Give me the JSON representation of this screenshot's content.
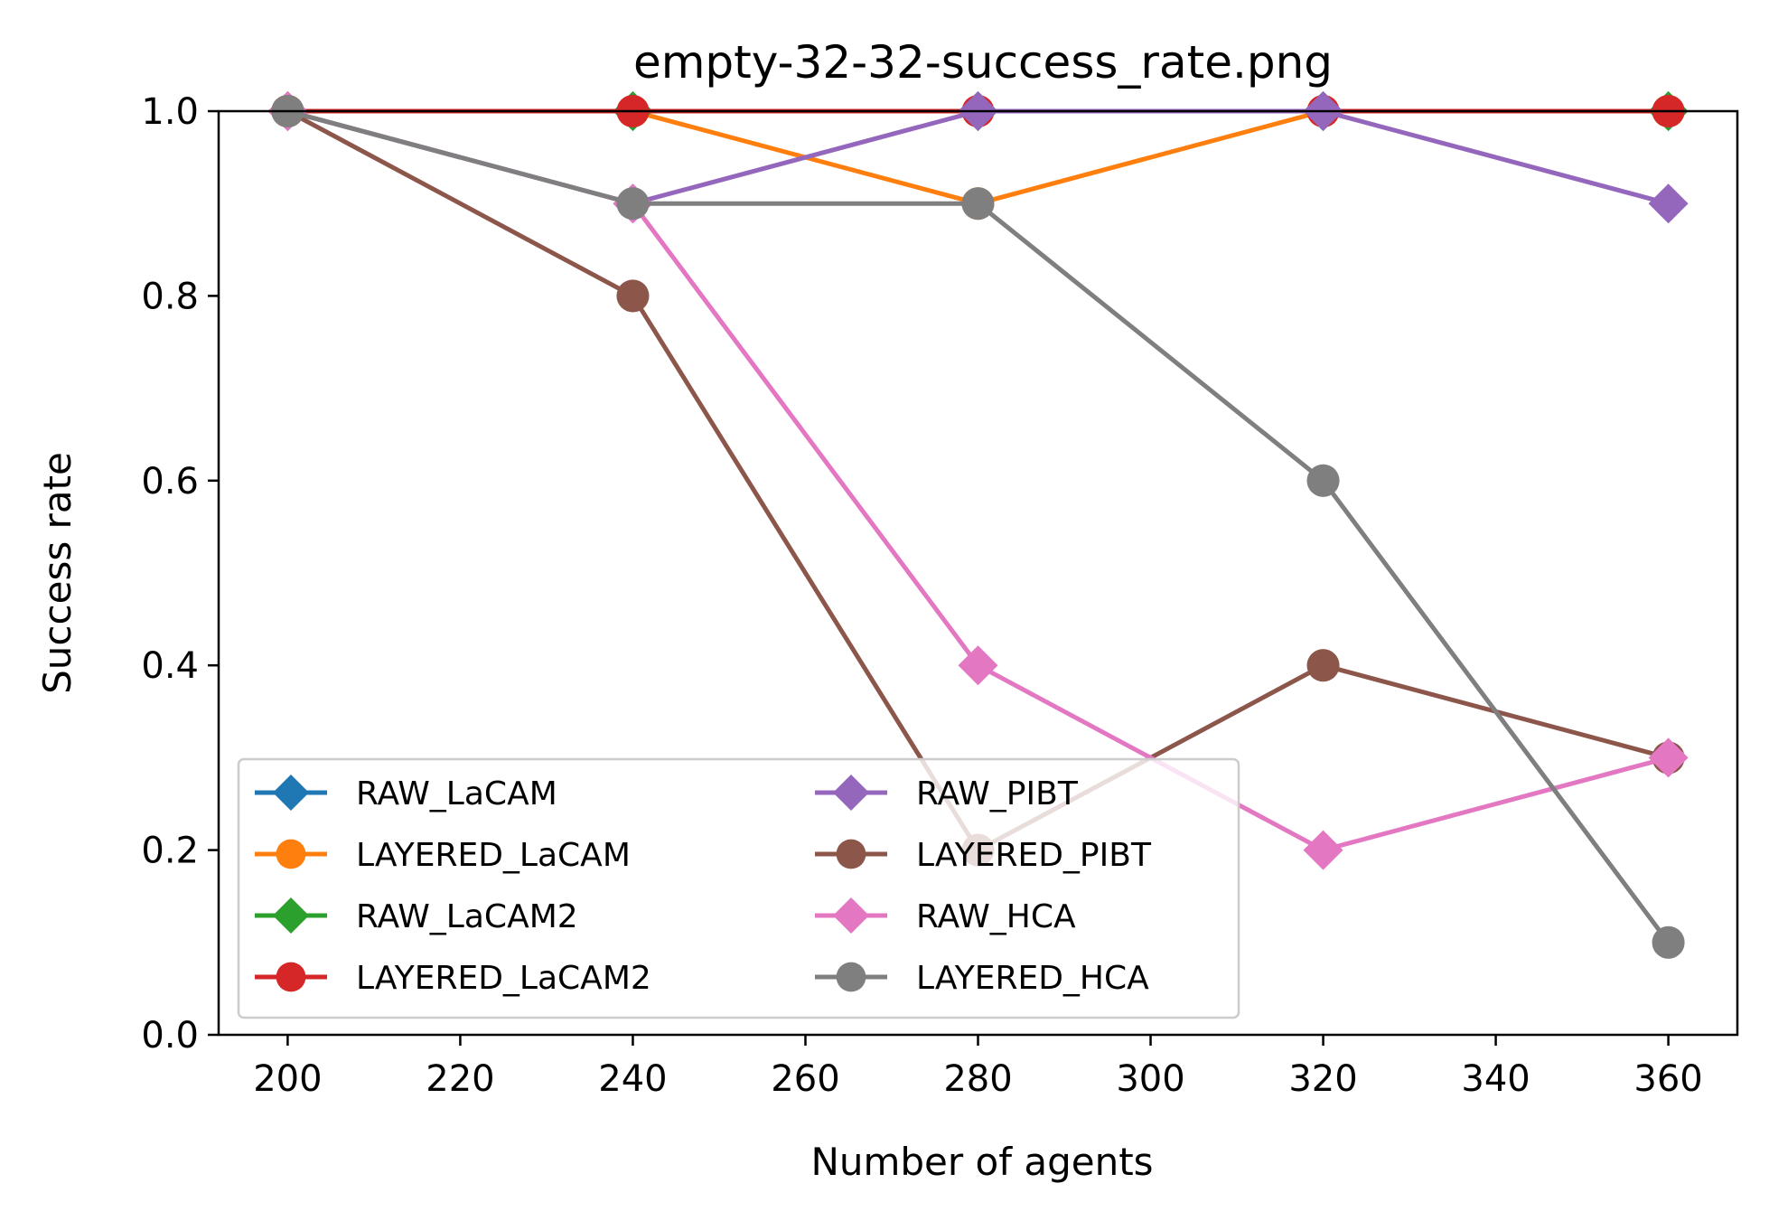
{
  "chart_data": {
    "type": "line",
    "title": "empty-32-32-success_rate.png",
    "xlabel": "Number of agents",
    "ylabel": "Success rate",
    "xlim": [
      192,
      368
    ],
    "ylim": [
      0.0,
      1.0
    ],
    "x": [
      200,
      240,
      280,
      320,
      360
    ],
    "x_ticks": [
      "200",
      "220",
      "240",
      "260",
      "280",
      "300",
      "320",
      "340",
      "360"
    ],
    "y_ticks": [
      "0.0",
      "0.2",
      "0.4",
      "0.6",
      "0.8",
      "1.0"
    ],
    "grid": false,
    "legend_placement": "lower-left",
    "legend_columns": 2,
    "series": [
      {
        "name": "RAW_LaCAM",
        "marker": "diamond",
        "color": "#1f77b4",
        "values": [
          1.0,
          1.0,
          1.0,
          1.0,
          1.0
        ]
      },
      {
        "name": "LAYERED_LaCAM",
        "marker": "circle",
        "color": "#ff7f0e",
        "values": [
          1.0,
          1.0,
          0.9,
          1.0,
          1.0
        ]
      },
      {
        "name": "RAW_LaCAM2",
        "marker": "diamond",
        "color": "#2ca02c",
        "values": [
          1.0,
          1.0,
          1.0,
          1.0,
          1.0
        ]
      },
      {
        "name": "LAYERED_LaCAM2",
        "marker": "circle",
        "color": "#d62728",
        "values": [
          1.0,
          1.0,
          1.0,
          1.0,
          1.0
        ]
      },
      {
        "name": "RAW_PIBT",
        "marker": "diamond",
        "color": "#9467bd",
        "values": [
          1.0,
          0.9,
          1.0,
          1.0,
          0.9
        ]
      },
      {
        "name": "LAYERED_PIBT",
        "marker": "circle",
        "color": "#8c564b",
        "values": [
          1.0,
          0.8,
          0.2,
          0.4,
          0.3
        ]
      },
      {
        "name": "RAW_HCA",
        "marker": "diamond",
        "color": "#e377c2",
        "values": [
          1.0,
          0.9,
          0.4,
          0.2,
          0.3
        ]
      },
      {
        "name": "LAYERED_HCA",
        "marker": "circle",
        "color": "#7f7f7f",
        "values": [
          1.0,
          0.9,
          0.9,
          0.6,
          0.1
        ]
      }
    ]
  }
}
